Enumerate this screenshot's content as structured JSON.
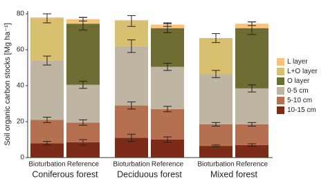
{
  "chart_data": {
    "type": "stacked_bar",
    "y_label": "Soil organic carbon stocks [Mg ha⁻¹]",
    "categories": [
      "Bioturbation",
      "Reference",
      "Bioturbation",
      "Reference",
      "Bioturbation",
      "Reference"
    ],
    "groups": [
      "Coniferous forest",
      "Deciduous forest",
      "Mixed forest"
    ],
    "ylim": [
      0,
      80
    ],
    "yticks": [
      0,
      20,
      40,
      60,
      80
    ],
    "grid": false,
    "legend": "right",
    "series": [
      {
        "name": "10-15 cm",
        "color": "#7b2b17",
        "values": [
          8,
          8.5,
          11,
          10,
          6.5,
          7
        ],
        "errors": [
          1,
          1.5,
          2,
          1.5,
          0.5,
          0.7
        ]
      },
      {
        "name": "5-10 cm",
        "color": "#b4704f",
        "values": [
          13,
          11,
          18,
          17,
          12,
          11.5
        ],
        "errors": [
          1.5,
          1.5,
          2,
          1.5,
          1,
          1
        ]
      },
      {
        "name": "0-5 cm",
        "color": "#bfb5a3",
        "values": [
          33,
          21,
          33,
          23.5,
          28,
          20
        ],
        "errors": [
          2.5,
          2,
          3.5,
          2,
          2,
          2
        ]
      },
      {
        "name": "O layer",
        "color": "#6c6c33",
        "values": [
          0,
          34,
          0,
          21.5,
          0,
          33.5
        ],
        "errors": [
          null,
          3.5,
          null,
          2.5,
          null,
          3.5
        ]
      },
      {
        "name": "L+O layer",
        "color": "#d8c070",
        "values": [
          23.5,
          0,
          14,
          0,
          20,
          0
        ],
        "errors": [
          2.5,
          null,
          3,
          null,
          2.5,
          null
        ]
      },
      {
        "name": "L layer",
        "color": "#f8c27b",
        "values": [
          0.5,
          2.5,
          0.5,
          2,
          0,
          2.5
        ],
        "errors": [
          null,
          1,
          null,
          1,
          null,
          1
        ]
      }
    ]
  }
}
